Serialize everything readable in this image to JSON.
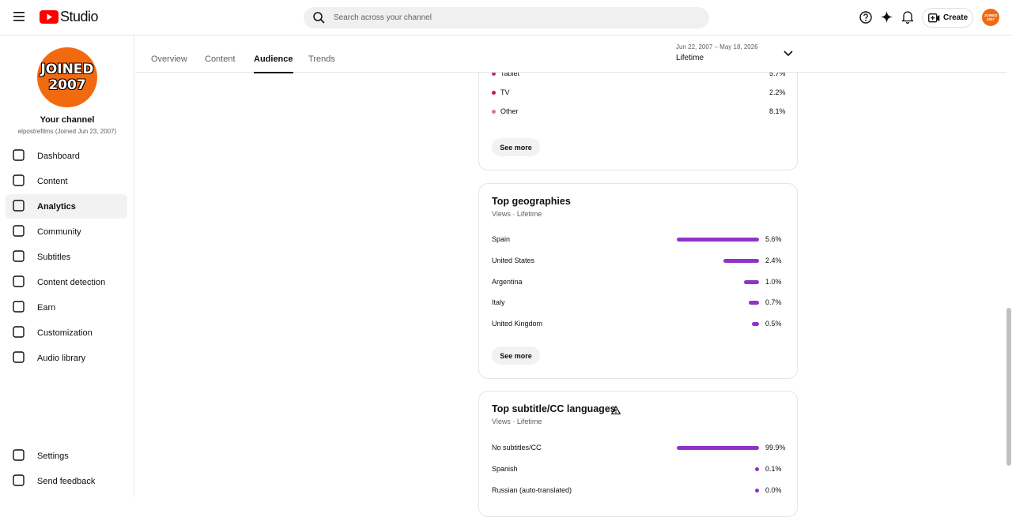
{
  "header": {
    "logo": "Studio",
    "search_placeholder": "Search across your channel",
    "create": "Create",
    "avatar": [
      "JOINED",
      "2007"
    ]
  },
  "channel": {
    "avatar": [
      "JOINED",
      "2007"
    ],
    "title": "Your channel",
    "subtitle": "elpostrefilms (Joined Jun 23, 2007)"
  },
  "nav": [
    "Dashboard",
    "Content",
    "Analytics",
    "Community",
    "Subtitles",
    "Content detection",
    "Earn",
    "Customization",
    "Audio library"
  ],
  "nav_footer": [
    "Settings",
    "Send feedback"
  ],
  "tabs": [
    "Overview",
    "Content",
    "Audience",
    "Trends"
  ],
  "date_range": {
    "range": "Jun 22, 2007 – May 18, 2026",
    "period": "Lifetime"
  },
  "devices": {
    "rows": [
      {
        "name": "Tablet",
        "label": "5.7%",
        "color": "#b0358f"
      },
      {
        "name": "TV",
        "label": "2.2%",
        "color": "#c2185b"
      },
      {
        "name": "Other",
        "label": "8.1%",
        "color": "#e36ba8"
      }
    ],
    "button": "See more"
  },
  "geographies": {
    "title": "Top geographies",
    "subtitle": "Views · Lifetime",
    "rows": [
      {
        "name": "Spain",
        "value": 5.6,
        "label": "5.6%"
      },
      {
        "name": "United States",
        "value": 2.4,
        "label": "2.4%"
      },
      {
        "name": "Argentina",
        "value": 1.0,
        "label": "1.0%"
      },
      {
        "name": "Italy",
        "value": 0.7,
        "label": "0.7%"
      },
      {
        "name": "United Kingdom",
        "value": 0.5,
        "label": "0.5%"
      }
    ],
    "button": "See more"
  },
  "subtitles": {
    "title": "Top subtitle/CC languages",
    "subtitle": "Views · Lifetime",
    "rows": [
      {
        "name": "No subtitles/CC",
        "value": 99.9,
        "label": "99.9%"
      },
      {
        "name": "Spanish",
        "value": 0.1,
        "label": "0.1%"
      },
      {
        "name": "Russian (auto-translated)",
        "value": 0.0,
        "label": "0.0%"
      }
    ]
  }
}
